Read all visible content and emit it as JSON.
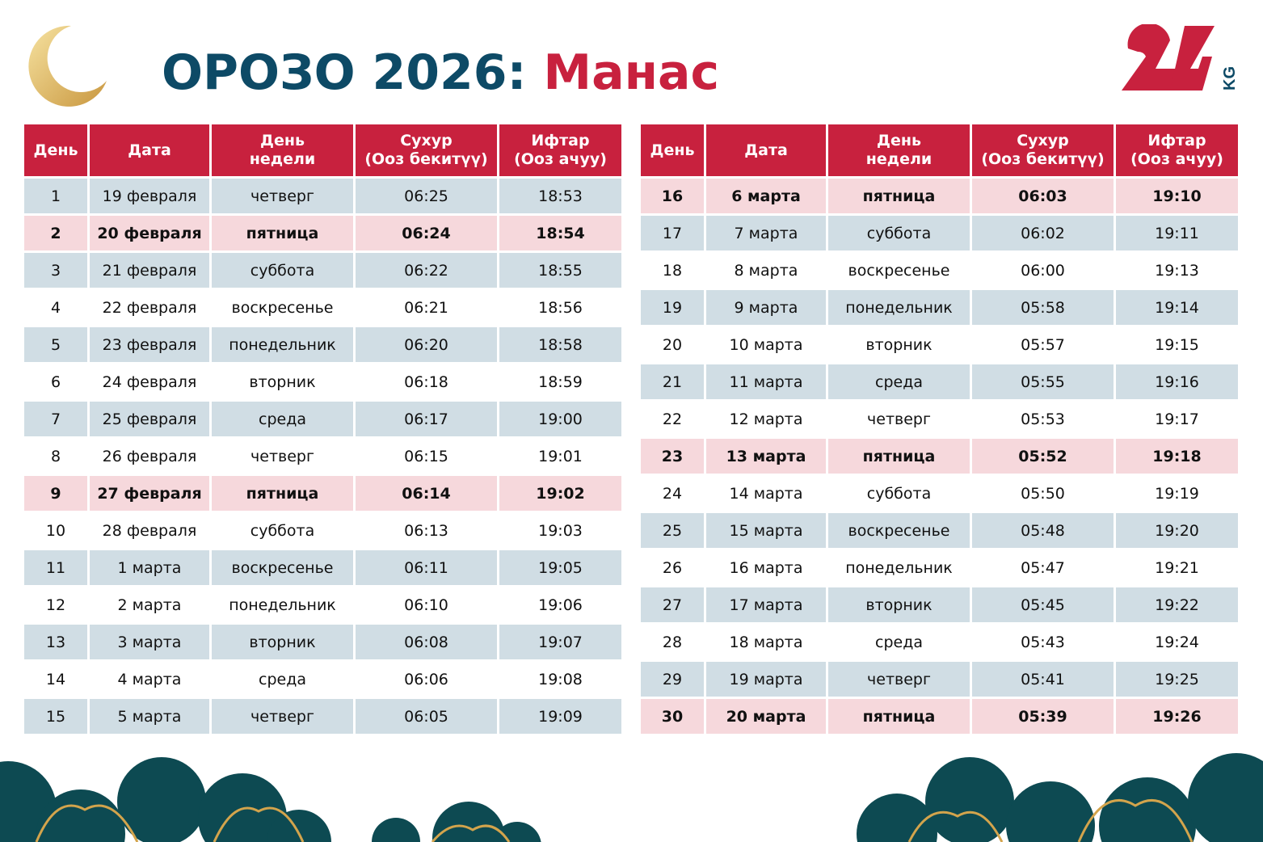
{
  "header": {
    "title_main": "ОРОЗО 2026:",
    "title_city": "Манас",
    "logo_text": "24 KG"
  },
  "colors": {
    "primary_red": "#c8213e",
    "navy": "#0d4a66",
    "row_alt": "#d0dde4",
    "row_friday": "#f6d8dc"
  },
  "columns": [
    "День",
    "Дата",
    "День недели",
    "Сухур (Ооз бекитүү)",
    "Ифтар (Ооз ачуу)"
  ],
  "left_rows": [
    {
      "day": "1",
      "date": "19 февраля",
      "weekday": "четверг",
      "suhur": "06:25",
      "iftar": "18:53",
      "style": "alt"
    },
    {
      "day": "2",
      "date": "20 февраля",
      "weekday": "пятница",
      "suhur": "06:24",
      "iftar": "18:54",
      "style": "friday"
    },
    {
      "day": "3",
      "date": "21 февраля",
      "weekday": "суббота",
      "suhur": "06:22",
      "iftar": "18:55",
      "style": "alt"
    },
    {
      "day": "4",
      "date": "22 февраля",
      "weekday": "воскресенье",
      "suhur": "06:21",
      "iftar": "18:56",
      "style": "plain"
    },
    {
      "day": "5",
      "date": "23 февраля",
      "weekday": "понедельник",
      "suhur": "06:20",
      "iftar": "18:58",
      "style": "alt"
    },
    {
      "day": "6",
      "date": "24 февраля",
      "weekday": "вторник",
      "suhur": "06:18",
      "iftar": "18:59",
      "style": "plain"
    },
    {
      "day": "7",
      "date": "25 февраля",
      "weekday": "среда",
      "suhur": "06:17",
      "iftar": "19:00",
      "style": "alt"
    },
    {
      "day": "8",
      "date": "26 февраля",
      "weekday": "четверг",
      "suhur": "06:15",
      "iftar": "19:01",
      "style": "plain"
    },
    {
      "day": "9",
      "date": "27 февраля",
      "weekday": "пятница",
      "suhur": "06:14",
      "iftar": "19:02",
      "style": "friday"
    },
    {
      "day": "10",
      "date": "28 февраля",
      "weekday": "суббота",
      "suhur": "06:13",
      "iftar": "19:03",
      "style": "plain"
    },
    {
      "day": "11",
      "date": "1 марта",
      "weekday": "воскресенье",
      "suhur": "06:11",
      "iftar": "19:05",
      "style": "alt"
    },
    {
      "day": "12",
      "date": "2 марта",
      "weekday": "понедельник",
      "suhur": "06:10",
      "iftar": "19:06",
      "style": "plain"
    },
    {
      "day": "13",
      "date": "3 марта",
      "weekday": "вторник",
      "suhur": "06:08",
      "iftar": "19:07",
      "style": "alt"
    },
    {
      "day": "14",
      "date": "4 марта",
      "weekday": "среда",
      "suhur": "06:06",
      "iftar": "19:08",
      "style": "plain"
    },
    {
      "day": "15",
      "date": "5 марта",
      "weekday": "четверг",
      "suhur": "06:05",
      "iftar": "19:09",
      "style": "alt"
    }
  ],
  "right_rows": [
    {
      "day": "16",
      "date": "6 марта",
      "weekday": "пятница",
      "suhur": "06:03",
      "iftar": "19:10",
      "style": "friday"
    },
    {
      "day": "17",
      "date": "7 марта",
      "weekday": "суббота",
      "suhur": "06:02",
      "iftar": "19:11",
      "style": "alt"
    },
    {
      "day": "18",
      "date": "8 марта",
      "weekday": "воскресенье",
      "suhur": "06:00",
      "iftar": "19:13",
      "style": "plain"
    },
    {
      "day": "19",
      "date": "9 марта",
      "weekday": "понедельник",
      "suhur": "05:58",
      "iftar": "19:14",
      "style": "alt"
    },
    {
      "day": "20",
      "date": "10 марта",
      "weekday": "вторник",
      "suhur": "05:57",
      "iftar": "19:15",
      "style": "plain"
    },
    {
      "day": "21",
      "date": "11 марта",
      "weekday": "среда",
      "suhur": "05:55",
      "iftar": "19:16",
      "style": "alt"
    },
    {
      "day": "22",
      "date": "12 марта",
      "weekday": "четверг",
      "suhur": "05:53",
      "iftar": "19:17",
      "style": "plain"
    },
    {
      "day": "23",
      "date": "13 марта",
      "weekday": "пятница",
      "suhur": "05:52",
      "iftar": "19:18",
      "style": "friday"
    },
    {
      "day": "24",
      "date": "14 марта",
      "weekday": "суббота",
      "suhur": "05:50",
      "iftar": "19:19",
      "style": "plain"
    },
    {
      "day": "25",
      "date": "15 марта",
      "weekday": "воскресенье",
      "suhur": "05:48",
      "iftar": "19:20",
      "style": "alt"
    },
    {
      "day": "26",
      "date": "16 марта",
      "weekday": "понедельник",
      "suhur": "05:47",
      "iftar": "19:21",
      "style": "plain"
    },
    {
      "day": "27",
      "date": "17 марта",
      "weekday": "вторник",
      "suhur": "05:45",
      "iftar": "19:22",
      "style": "alt"
    },
    {
      "day": "28",
      "date": "18 марта",
      "weekday": "среда",
      "suhur": "05:43",
      "iftar": "19:24",
      "style": "plain"
    },
    {
      "day": "29",
      "date": "19 марта",
      "weekday": "четверг",
      "suhur": "05:41",
      "iftar": "19:25",
      "style": "alt"
    },
    {
      "day": "30",
      "date": "20 марта",
      "weekday": "пятница",
      "suhur": "05:39",
      "iftar": "19:26",
      "style": "friday"
    }
  ]
}
